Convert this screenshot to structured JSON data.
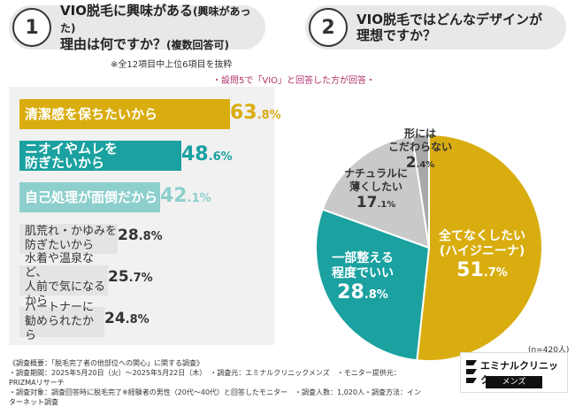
{
  "left_question": {
    "number": "1",
    "line1": "VIO脱毛に興味がある",
    "line1_sub": "(興味があった)",
    "line2": "理由は何ですか？",
    "line2_sub": "(複数回答可)"
  },
  "right_question": {
    "number": "2",
    "line1": "VIO脱毛ではどんなデザインが",
    "line2": "理想ですか？"
  },
  "notes": {
    "top_note": "※全12項目中上位6項目を抜粋",
    "condition": "・設問5で「VIO」と回答した方が回答・",
    "n": "(n=420人)"
  },
  "colors": {
    "yellow": "#d9ad0f",
    "teal": "#1aa1a0",
    "lightteal": "#8dcfcd",
    "gray": "#c9c9c9",
    "lightgray": "#e4e4e4",
    "darkgray": "#a8a8a8"
  },
  "chart_data": [
    {
      "type": "bar",
      "title": "VIO脱毛に興味がある(興味があった)理由は何ですか？(複数回答可)",
      "categories": [
        "清潔感を保ちたいから",
        "ニオイやムレを防ぎたいから",
        "自己処理が面倒だから",
        "肌荒れ・かゆみを防ぎたいから",
        "水着や温泉など、人前で気になるから",
        "パートナーに勧められたから"
      ],
      "label_lines": [
        [
          "清潔感を保ちたいから"
        ],
        [
          "ニオイやムレを",
          "防ぎたいから"
        ],
        [
          "自己処理が面倒だから"
        ],
        [
          "肌荒れ・かゆみを",
          "防ぎたいから"
        ],
        [
          "水着や温泉など、",
          "人前で気になるから"
        ],
        [
          "パートナーに",
          "勧められたから"
        ]
      ],
      "values": [
        63.8,
        48.6,
        42.1,
        28.8,
        25.7,
        24.8
      ],
      "value_int": [
        "63",
        "48",
        "42",
        "28",
        "25",
        "24"
      ],
      "value_dec": [
        ".8%",
        ".6%",
        ".1%",
        ".8%",
        ".7%",
        ".8%"
      ],
      "unit": "%"
    },
    {
      "type": "pie",
      "title": "VIO脱毛ではどんなデザインが理想ですか？",
      "categories": [
        "全てなくしたい(ハイジニーナ)",
        "一部整える程度でいい",
        "ナチュラルに薄くしたい",
        "形にはこだわらない"
      ],
      "label_lines": [
        [
          "全てなくしたい",
          "(ハイジニーナ)"
        ],
        [
          "一部整える",
          "程度でいい"
        ],
        [
          "ナチュラルに",
          "薄くしたい"
        ],
        [
          "形には",
          "こだわらない"
        ]
      ],
      "values": [
        51.7,
        28.8,
        17.1,
        2.4
      ],
      "value_int": [
        "51",
        "28",
        "17",
        "2"
      ],
      "value_dec": [
        ".7%",
        ".8%",
        ".1%",
        ".4%"
      ],
      "unit": "%"
    }
  ],
  "footer": {
    "line1": "《調査概要：「脱毛完了者の他部位への関心」に関する調査》",
    "line2": "・調査期間：2025年5月20日（火）～2025年5月22日（木）　・調査元：エミナルクリニックメンズ　・モニター提供元：PRIZMAリサーチ",
    "line3": "・調査対象：調査回答時に脱毛完了※経験者の男性（20代～40代）と回答したモニター　・調査人数：1,020人・調査方法：インターネット調査"
  },
  "logo": {
    "name": "エミナルクリニック",
    "sub": "メンズ"
  }
}
